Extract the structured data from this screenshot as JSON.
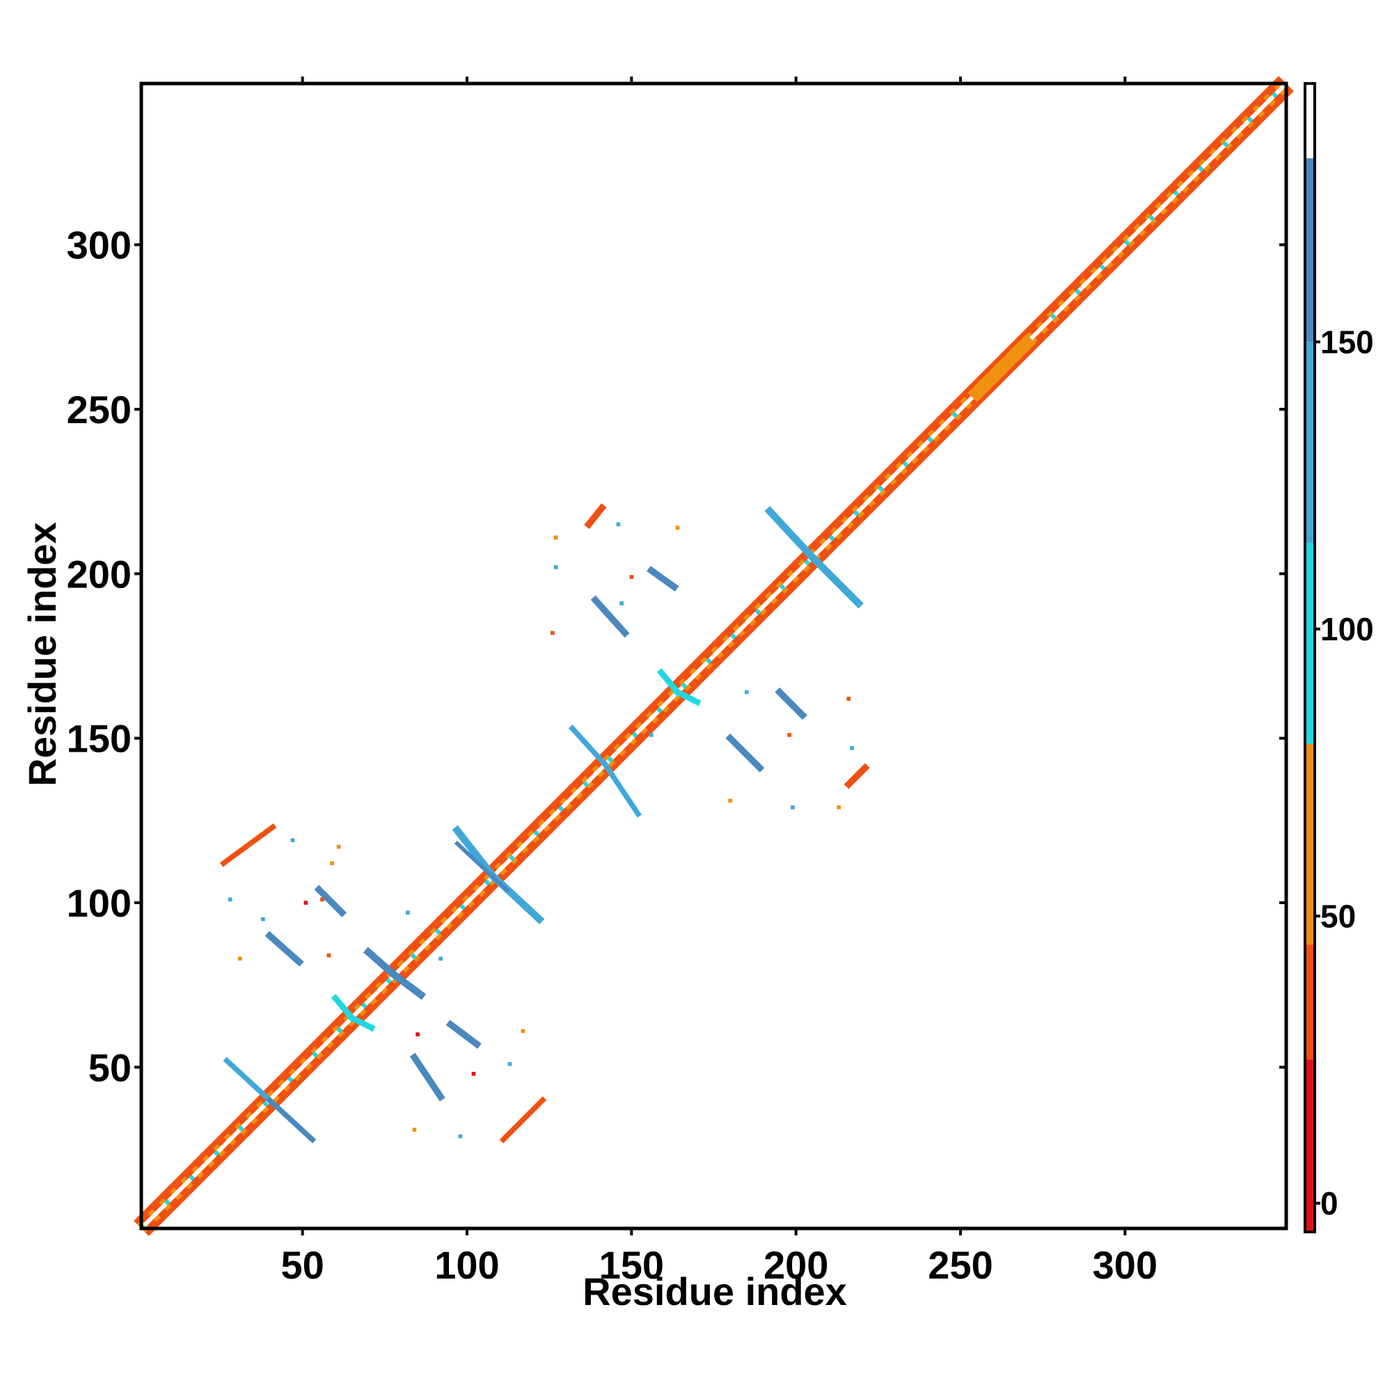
{
  "chart_data": {
    "type": "heatmap",
    "title": "",
    "xlabel": "Residue index",
    "ylabel": "Residue index",
    "xlim": [
      1,
      349
    ],
    "ylim": [
      1,
      349
    ],
    "x_ticks": [
      50,
      100,
      150,
      200,
      250,
      300
    ],
    "y_ticks": [
      50,
      100,
      150,
      200,
      250,
      300
    ],
    "grid": false,
    "legend": "colorbar-right",
    "colorbar": {
      "range": [
        -5,
        195
      ],
      "ticks": [
        0,
        50,
        100,
        150
      ],
      "bands": [
        {
          "from": -5,
          "to": 25,
          "color": "#e0101a"
        },
        {
          "from": 25,
          "to": 45,
          "color": "#f05010"
        },
        {
          "from": 45,
          "to": 80,
          "color": "#f09010"
        },
        {
          "from": 80,
          "to": 115,
          "color": "#20d8e0"
        },
        {
          "from": 115,
          "to": 150,
          "color": "#40a8d8"
        },
        {
          "from": 150,
          "to": 182,
          "color": "#4a88c0"
        },
        {
          "from": 182,
          "to": 195,
          "color": "#ffffff"
        }
      ]
    },
    "colors": {
      "red": "#e0101a",
      "redorange": "#f05010",
      "orange": "#f09010",
      "cyan": "#20d8e0",
      "blue": "#40a8d8",
      "steel": "#4a88c0"
    },
    "diagonal": {
      "from": 1,
      "to": 349
    },
    "segments": [
      {
        "x1": 108,
        "y1": 108,
        "x2": 97,
        "y2": 122,
        "color": "blue",
        "w": 2.2
      },
      {
        "x1": 108,
        "y1": 108,
        "x2": 122,
        "y2": 95,
        "color": "blue",
        "w": 2.2
      },
      {
        "x1": 112,
        "y1": 104,
        "x2": 97,
        "y2": 118,
        "color": "steel",
        "w": 1.2
      },
      {
        "x1": 205,
        "y1": 205,
        "x2": 192,
        "y2": 219,
        "color": "blue",
        "w": 2.2
      },
      {
        "x1": 205,
        "y1": 205,
        "x2": 219,
        "y2": 191,
        "color": "blue",
        "w": 2.2
      },
      {
        "x1": 78,
        "y1": 78,
        "x2": 70,
        "y2": 85,
        "color": "steel",
        "w": 2.2
      },
      {
        "x1": 78,
        "y1": 78,
        "x2": 86,
        "y2": 72,
        "color": "steel",
        "w": 2.2
      },
      {
        "x1": 65,
        "y1": 65,
        "x2": 60,
        "y2": 71,
        "color": "cyan",
        "w": 1.8
      },
      {
        "x1": 65,
        "y1": 65,
        "x2": 71,
        "y2": 62,
        "color": "cyan",
        "w": 1.8
      },
      {
        "x1": 164,
        "y1": 164,
        "x2": 159,
        "y2": 170,
        "color": "cyan",
        "w": 1.8
      },
      {
        "x1": 164,
        "y1": 164,
        "x2": 170,
        "y2": 161,
        "color": "cyan",
        "w": 1.8
      },
      {
        "x1": 142,
        "y1": 142,
        "x2": 132,
        "y2": 153,
        "color": "blue",
        "w": 1.6
      },
      {
        "x1": 142,
        "y1": 142,
        "x2": 152,
        "y2": 127,
        "color": "blue",
        "w": 1.6
      },
      {
        "x1": 40,
        "y1": 40,
        "x2": 27,
        "y2": 52,
        "color": "blue",
        "w": 1.6
      },
      {
        "x1": 40,
        "y1": 40,
        "x2": 53,
        "y2": 28,
        "color": "steel",
        "w": 1.6
      },
      {
        "x1": 40,
        "y1": 90,
        "x2": 49,
        "y2": 82,
        "color": "steel",
        "w": 2.0
      },
      {
        "x1": 55,
        "y1": 104,
        "x2": 62,
        "y2": 97,
        "color": "steel",
        "w": 2.0
      },
      {
        "x1": 180,
        "y1": 150,
        "x2": 189,
        "y2": 141,
        "color": "steel",
        "w": 2.0
      },
      {
        "x1": 195,
        "y1": 164,
        "x2": 202,
        "y2": 157,
        "color": "steel",
        "w": 2.0
      },
      {
        "x1": 139,
        "y1": 192,
        "x2": 148,
        "y2": 182,
        "color": "steel",
        "w": 2.0
      },
      {
        "x1": 156,
        "y1": 201,
        "x2": 163,
        "y2": 196,
        "color": "steel",
        "w": 2.0
      },
      {
        "x1": 84,
        "y1": 53,
        "x2": 92,
        "y2": 41,
        "color": "steel",
        "w": 2.0
      },
      {
        "x1": 95,
        "y1": 63,
        "x2": 103,
        "y2": 57,
        "color": "steel",
        "w": 2.0
      },
      {
        "x1": 26,
        "y1": 112,
        "x2": 41,
        "y2": 123,
        "color": "redorange",
        "w": 1.6
      },
      {
        "x1": 137,
        "y1": 215,
        "x2": 141,
        "y2": 220,
        "color": "redorange",
        "w": 2.0
      },
      {
        "x1": 111,
        "y1": 28,
        "x2": 123,
        "y2": 40,
        "color": "redorange",
        "w": 1.6
      },
      {
        "x1": 216,
        "y1": 136,
        "x2": 221,
        "y2": 141,
        "color": "redorange",
        "w": 2.0
      },
      {
        "x1": 255,
        "y1": 255,
        "x2": 270,
        "y2": 270,
        "color": "orange",
        "w": 4.0
      }
    ],
    "specks": [
      {
        "x": 28,
        "y": 101,
        "color": "blue"
      },
      {
        "x": 56,
        "y": 101,
        "color": "redorange"
      },
      {
        "x": 51,
        "y": 100,
        "color": "red"
      },
      {
        "x": 58,
        "y": 84,
        "color": "redorange"
      },
      {
        "x": 31,
        "y": 83,
        "color": "orange"
      },
      {
        "x": 61,
        "y": 117,
        "color": "orange"
      },
      {
        "x": 59,
        "y": 112,
        "color": "orange"
      },
      {
        "x": 47,
        "y": 119,
        "color": "blue"
      },
      {
        "x": 38,
        "y": 95,
        "color": "blue"
      },
      {
        "x": 82,
        "y": 97,
        "color": "blue"
      },
      {
        "x": 92,
        "y": 83,
        "color": "blue"
      },
      {
        "x": 85,
        "y": 60,
        "color": "red"
      },
      {
        "x": 102,
        "y": 48,
        "color": "red"
      },
      {
        "x": 117,
        "y": 61,
        "color": "orange"
      },
      {
        "x": 113,
        "y": 51,
        "color": "blue"
      },
      {
        "x": 98,
        "y": 29,
        "color": "blue"
      },
      {
        "x": 84,
        "y": 31,
        "color": "orange"
      },
      {
        "x": 127,
        "y": 202,
        "color": "blue"
      },
      {
        "x": 150,
        "y": 199,
        "color": "redorange"
      },
      {
        "x": 147,
        "y": 191,
        "color": "blue"
      },
      {
        "x": 126,
        "y": 182,
        "color": "redorange"
      },
      {
        "x": 164,
        "y": 214,
        "color": "orange"
      },
      {
        "x": 146,
        "y": 215,
        "color": "blue"
      },
      {
        "x": 127,
        "y": 211,
        "color": "orange"
      },
      {
        "x": 156,
        "y": 151,
        "color": "blue"
      },
      {
        "x": 185,
        "y": 164,
        "color": "blue"
      },
      {
        "x": 198,
        "y": 151,
        "color": "redorange"
      },
      {
        "x": 180,
        "y": 131,
        "color": "orange"
      },
      {
        "x": 199,
        "y": 129,
        "color": "blue"
      },
      {
        "x": 213,
        "y": 129,
        "color": "orange"
      },
      {
        "x": 216,
        "y": 162,
        "color": "redorange"
      },
      {
        "x": 217,
        "y": 147,
        "color": "blue"
      }
    ]
  }
}
